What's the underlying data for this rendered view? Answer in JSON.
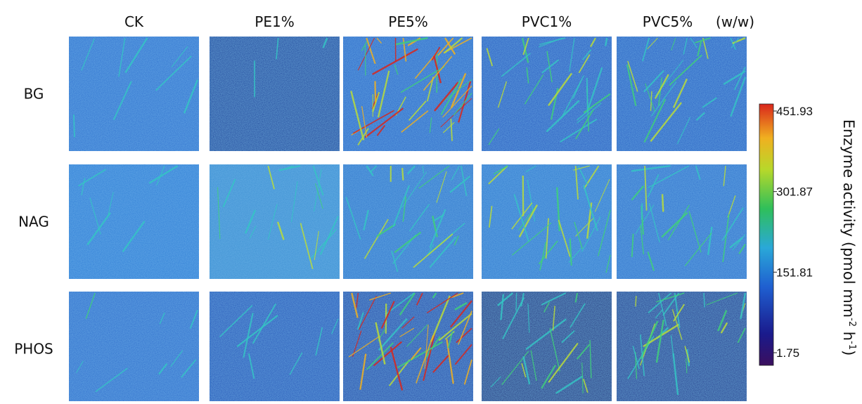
{
  "columns": [
    "CK",
    "PE1%",
    "PE5%",
    "PVC1%",
    "PVC5%"
  ],
  "column_note": "(w/w)",
  "rows": [
    "BG",
    "NAG",
    "PHOS"
  ],
  "colorbar": {
    "ticks": [
      451.93,
      301.87,
      151.81,
      1.75
    ],
    "label": [
      "Enzyme activity (pmol mm",
      "-2",
      " h",
      "-1",
      ")"
    ]
  }
}
